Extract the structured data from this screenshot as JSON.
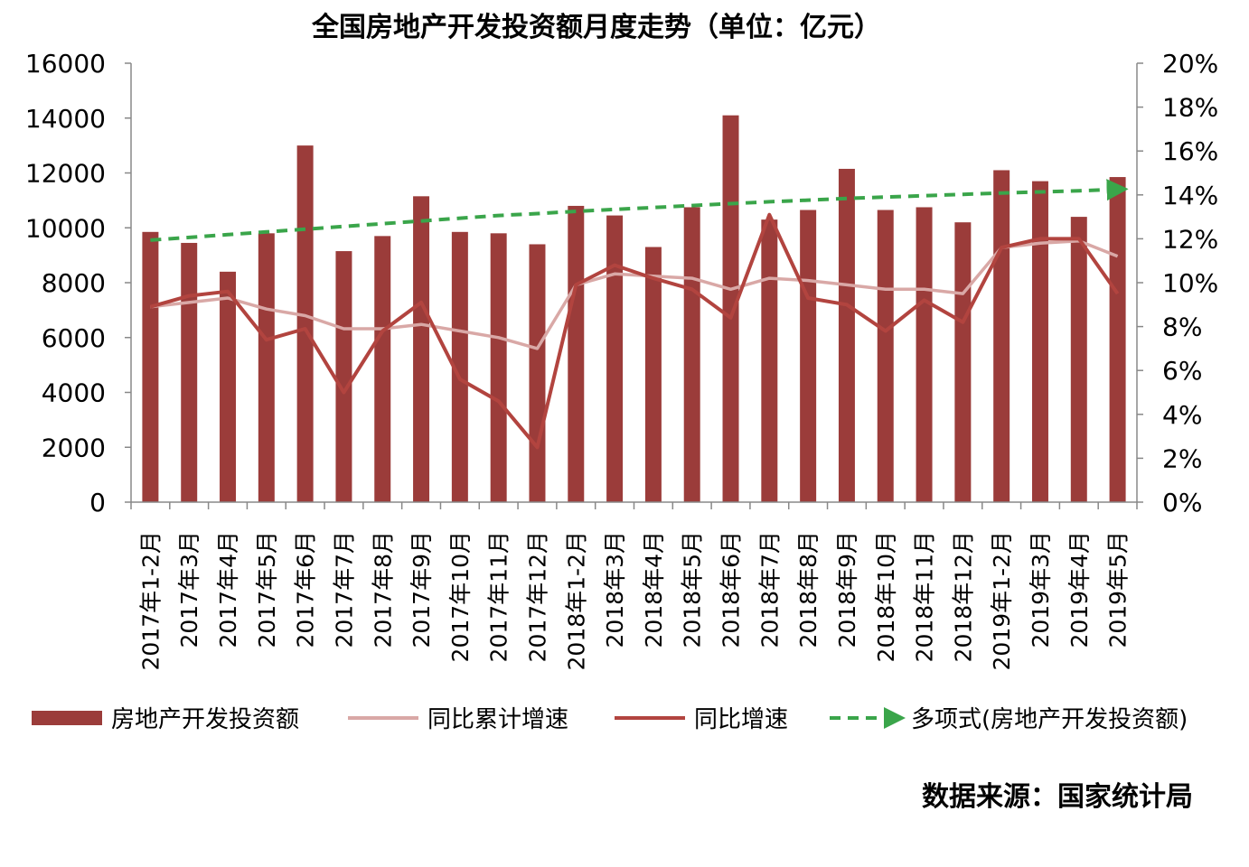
{
  "chart_data": {
    "type": "bar",
    "title": "全国房地产开发投资额月度走势（单位：亿元）",
    "source": "数据来源：国家统计局",
    "categories": [
      "2017年1-2月",
      "2017年3月",
      "2017年4月",
      "2017年5月",
      "2017年6月",
      "2017年7月",
      "2017年8月",
      "2017年9月",
      "2017年10月",
      "2017年11月",
      "2017年12月",
      "2018年1-2月",
      "2018年3月",
      "2018年4月",
      "2018年5月",
      "2018年6月",
      "2018年7月",
      "2018年8月",
      "2018年9月",
      "2018年10月",
      "2018年11月",
      "2018年12月",
      "2019年1-2月",
      "2019年3月",
      "2019年4月",
      "2019年5月"
    ],
    "y_left": {
      "min": 0,
      "max": 16000,
      "step": 2000,
      "ticks": [
        "0",
        "2000",
        "4000",
        "6000",
        "8000",
        "10000",
        "12000",
        "14000",
        "16000"
      ]
    },
    "y_right": {
      "min": 0,
      "max": 20,
      "step": 2,
      "ticks": [
        "0%",
        "2%",
        "4%",
        "6%",
        "8%",
        "10%",
        "12%",
        "14%",
        "16%",
        "18%",
        "20%"
      ]
    },
    "series": [
      {
        "name": "房地产开发投资额",
        "kind": "bar",
        "axis": "left",
        "color": "#9b3c3a",
        "values": [
          9850,
          9450,
          8400,
          9800,
          13000,
          9150,
          9700,
          11150,
          9850,
          9800,
          9400,
          10800,
          10450,
          9300,
          10750,
          14100,
          10300,
          10650,
          12150,
          10650,
          10750,
          10200,
          12100,
          11700,
          10400,
          11850
        ]
      },
      {
        "name": "同比累计增速",
        "kind": "line",
        "axis": "right",
        "color": "#d9a8a6",
        "values": [
          8.9,
          9.1,
          9.3,
          8.8,
          8.5,
          7.9,
          7.9,
          8.1,
          7.8,
          7.5,
          7.0,
          9.9,
          10.4,
          10.3,
          10.2,
          9.7,
          10.2,
          10.1,
          9.9,
          9.7,
          9.7,
          9.5,
          11.6,
          11.8,
          11.9,
          11.2
        ]
      },
      {
        "name": "同比增速",
        "kind": "line",
        "axis": "right",
        "color": "#b2443f",
        "values": [
          8.9,
          9.4,
          9.6,
          7.4,
          7.9,
          5.0,
          7.8,
          9.1,
          5.6,
          4.6,
          2.5,
          9.9,
          10.8,
          10.2,
          9.7,
          8.4,
          13.1,
          9.3,
          9.0,
          7.8,
          9.2,
          8.2,
          11.6,
          12.0,
          12.0,
          9.5
        ]
      },
      {
        "name": "多项式(房地产开发投资额)",
        "kind": "trend",
        "axis": "left",
        "color": "#3aa54a",
        "values": [
          9550,
          9650,
          9750,
          9850,
          9950,
          10050,
          10150,
          10250,
          10350,
          10450,
          10520,
          10600,
          10670,
          10740,
          10810,
          10880,
          10950,
          11010,
          11070,
          11120,
          11170,
          11220,
          11270,
          11310,
          11350,
          11400
        ]
      }
    ],
    "legend_position": "bottom",
    "grid": false
  }
}
